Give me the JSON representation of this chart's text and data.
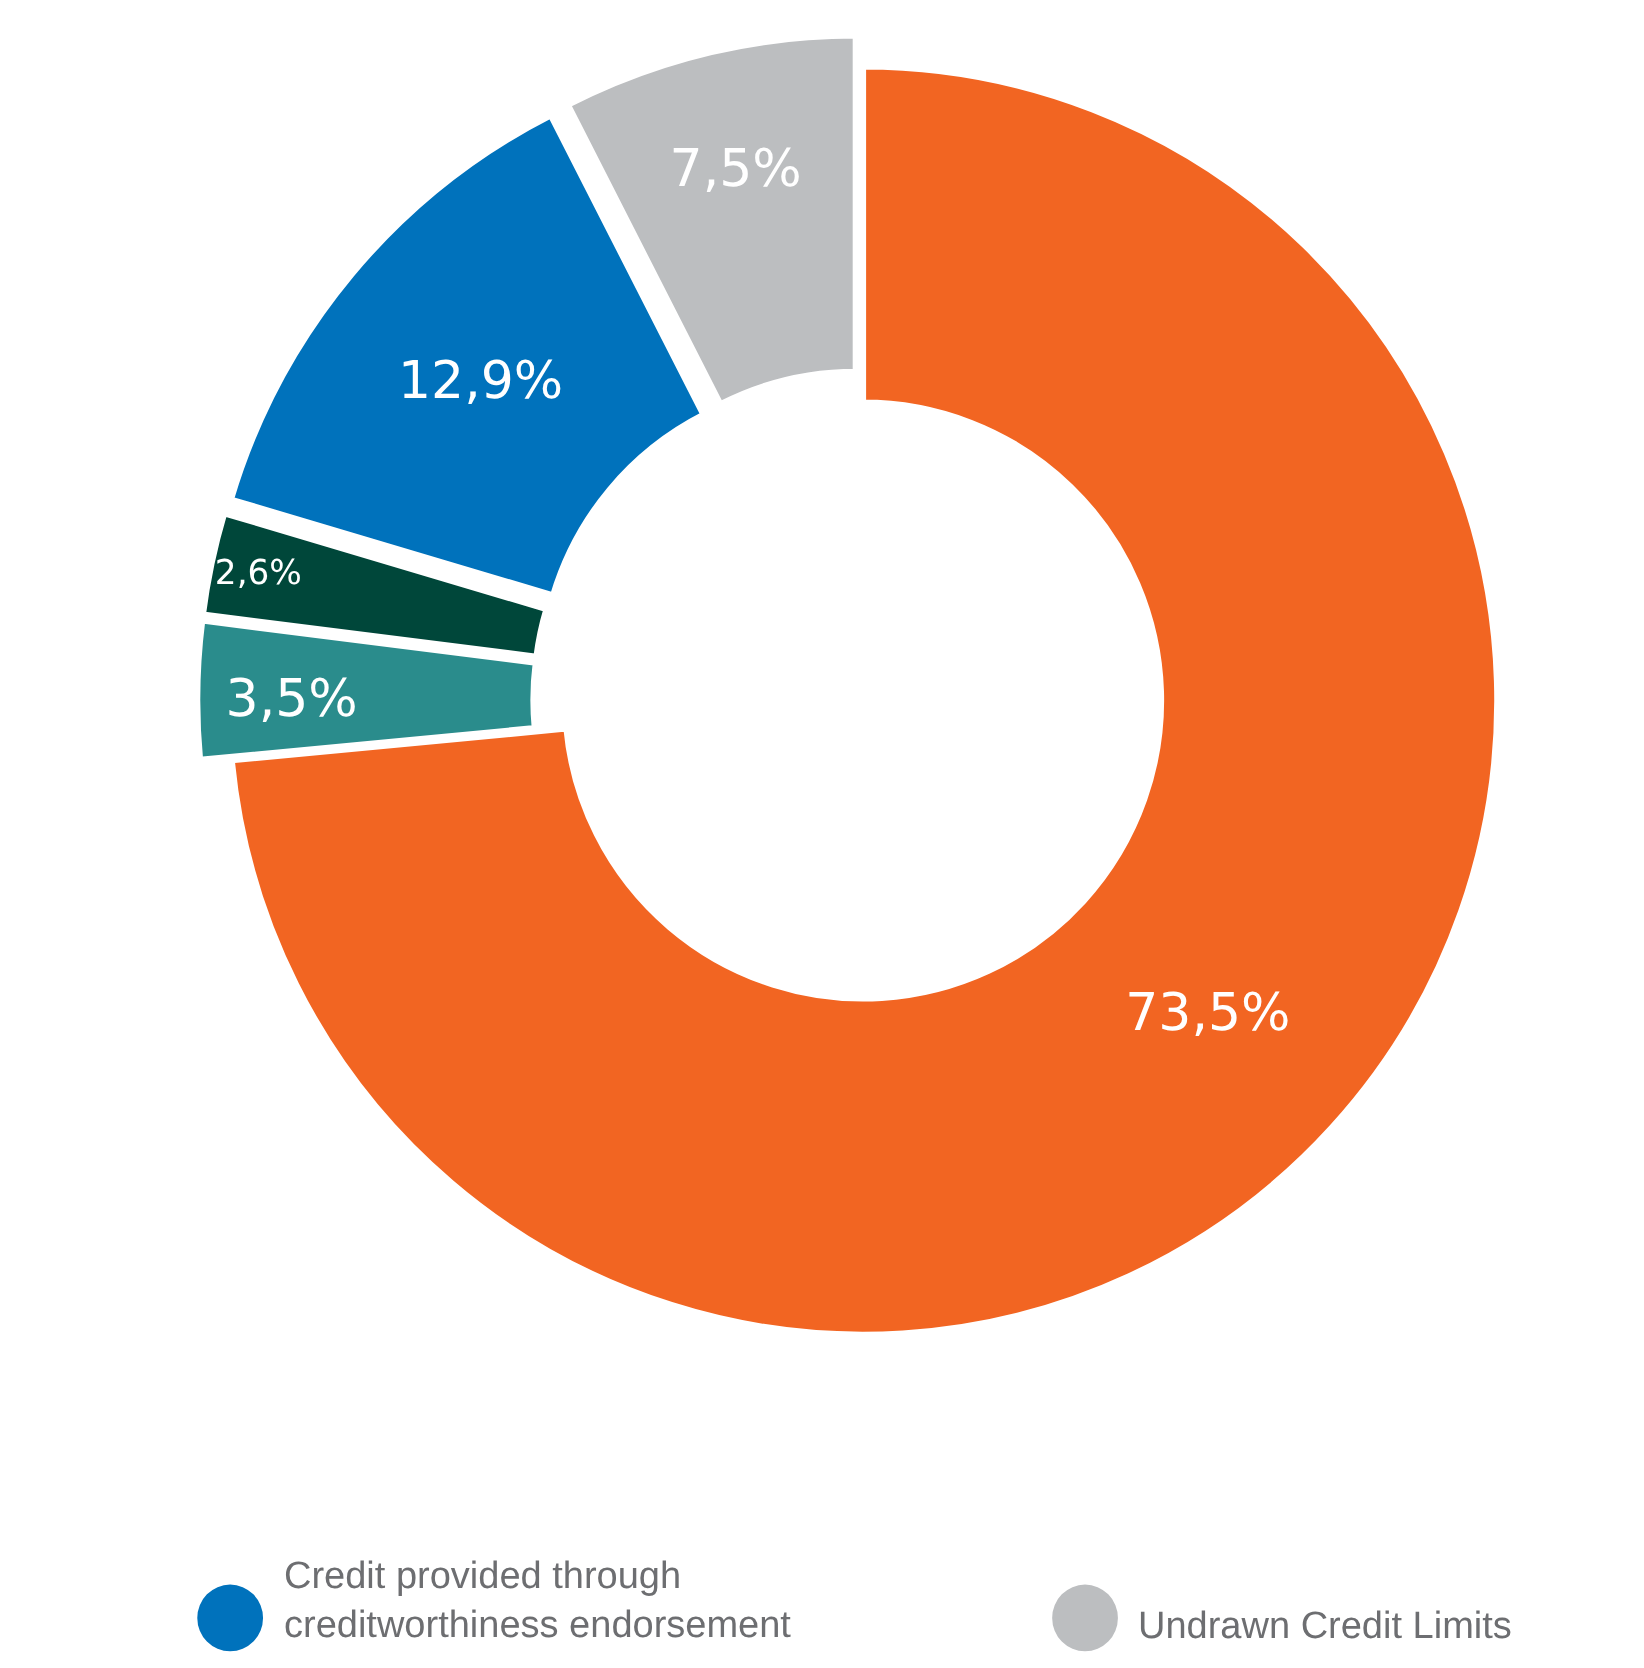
{
  "chart_data": {
    "type": "donut",
    "categories": [
      null,
      null,
      null,
      "Credit provided through creditworthiness endorsement",
      "Undrawn Credit Limits"
    ],
    "values": [
      73.5,
      3.5,
      2.6,
      12.9,
      7.5
    ],
    "value_labels": [
      "73,5%",
      "3,5%",
      "2,6%",
      "12,9%",
      "7,5%"
    ],
    "colors": [
      "#f26522",
      "#2a8c8c",
      "#00473a",
      "#0072bc",
      "#bcbec0"
    ],
    "legend": "bottom"
  }
}
